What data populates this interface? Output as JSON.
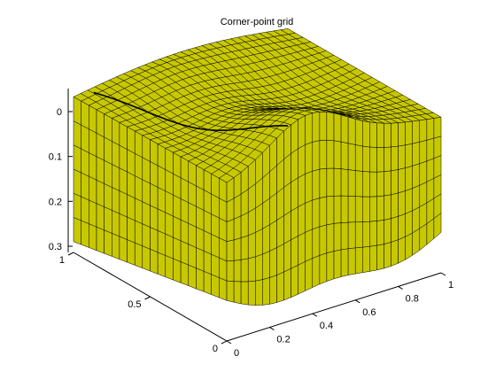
{
  "chart_data": {
    "type": "surface3d",
    "title": "Corner-point grid",
    "xlabel": "",
    "ylabel": "",
    "zlabel": "",
    "x_ticks": [
      "0",
      "0.2",
      "0.4",
      "0.6",
      "0.8",
      "1"
    ],
    "y_ticks": [
      "0",
      "0.5",
      "1"
    ],
    "z_ticks": [
      "0",
      "0.1",
      "0.2",
      "0.3"
    ],
    "xlim": [
      0,
      1
    ],
    "ylim": [
      0,
      1
    ],
    "zlim": [
      0,
      0.3
    ],
    "z_direction": "reversed",
    "grid_cells": {
      "nx": 30,
      "ny": 20,
      "nz": 6
    },
    "grid": false,
    "colors": {
      "face": "#c8c800",
      "edge": "#000000",
      "background": "#ffffff"
    }
  }
}
